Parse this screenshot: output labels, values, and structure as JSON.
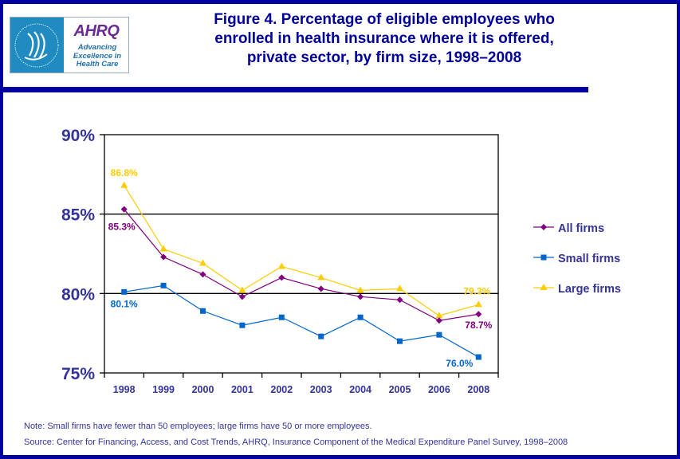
{
  "logo": {
    "org_name": "AHRQ",
    "tagline_lines": [
      "Advancing",
      "Excellence in",
      "Health Care"
    ],
    "seal_icon": "hhs-eagle-seal"
  },
  "title_lines": [
    "Figure 4. Percentage of eligible employees who",
    "enrolled in health insurance where it is offered,",
    "private sector, by firm size, 1998–2008"
  ],
  "colors": {
    "frame": "#0000A0",
    "axis_text": "#333399",
    "all_firms": "#800080",
    "small_firms": "#0066CC",
    "large_firms": "#FFCC00"
  },
  "chart_data": {
    "type": "line",
    "title": "Figure 4. Percentage of eligible employees who enrolled in health insurance where it is offered, private sector, by firm size, 1998–2008",
    "xlabel": "",
    "ylabel": "",
    "categories": [
      "1998",
      "1999",
      "2000",
      "2001",
      "2002",
      "2003",
      "2004",
      "2005",
      "2006",
      "2008"
    ],
    "ylim": [
      75,
      90
    ],
    "yticks": [
      75,
      80,
      85,
      90
    ],
    "ytick_labels": [
      "75%",
      "80%",
      "85%",
      "90%"
    ],
    "gridlines": [
      80,
      85
    ],
    "legend_position": "right",
    "series": [
      {
        "name": "All firms",
        "marker": "diamond",
        "color": "#800080",
        "values": [
          85.3,
          82.3,
          81.2,
          79.8,
          81.0,
          80.3,
          79.8,
          79.6,
          78.3,
          78.7
        ]
      },
      {
        "name": "Small firms",
        "marker": "square",
        "color": "#0066CC",
        "values": [
          80.1,
          80.5,
          78.9,
          78.0,
          78.5,
          77.3,
          78.5,
          77.0,
          77.4,
          76.0
        ]
      },
      {
        "name": "Large firms",
        "marker": "triangle",
        "color": "#FFCC00",
        "values": [
          86.8,
          82.8,
          81.9,
          80.2,
          81.7,
          81.0,
          80.2,
          80.3,
          78.6,
          79.3
        ]
      }
    ],
    "annotations": [
      {
        "series": "Large firms",
        "category": "1998",
        "text": "86.8%"
      },
      {
        "series": "All firms",
        "category": "1998",
        "text": "85.3%"
      },
      {
        "series": "Small firms",
        "category": "1998",
        "text": "80.1%"
      },
      {
        "series": "Large firms",
        "category": "2008",
        "text": "79.3%"
      },
      {
        "series": "All firms",
        "category": "2008",
        "text": "78.7%"
      },
      {
        "series": "Small firms",
        "category": "2008",
        "text": "76.0%"
      }
    ]
  },
  "footnotes": {
    "note": "Note: Small firms have fewer than 50 employees; large firms have 50 or more employees.",
    "source": "Source: Center for Financing, Access, and Cost Trends, AHRQ, Insurance Component of the Medical Expenditure Panel Survey, 1998–2008"
  }
}
